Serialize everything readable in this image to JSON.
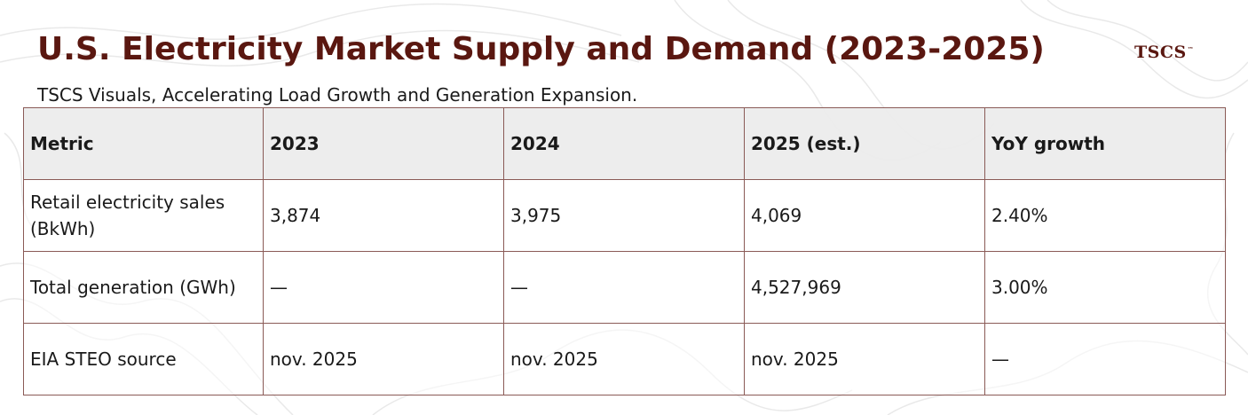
{
  "title": "U.S. Electricity Market Supply and Demand (2023-2025)",
  "brand": {
    "name": "TSCS",
    "mark": "™"
  },
  "subtitle": "TSCS Visuals, Accelerating Load Growth and Generation Expansion.",
  "table": {
    "headers": [
      "Metric",
      "2023",
      "2024",
      "2025 (est.)",
      "YoY growth"
    ],
    "rows": [
      [
        "Retail electricity sales (BkWh)",
        "3,874",
        "3,975",
        "4,069",
        "2.40%"
      ],
      [
        "Total generation (GWh)",
        "—",
        "—",
        "4,527,969",
        "3.00%"
      ],
      [
        "EIA STEO source",
        "nov. 2025",
        "nov. 2025",
        "nov. 2025",
        "—"
      ]
    ]
  },
  "colors": {
    "title": "#5a1710",
    "border": "#8a5a56",
    "header_bg": "#ececec"
  }
}
